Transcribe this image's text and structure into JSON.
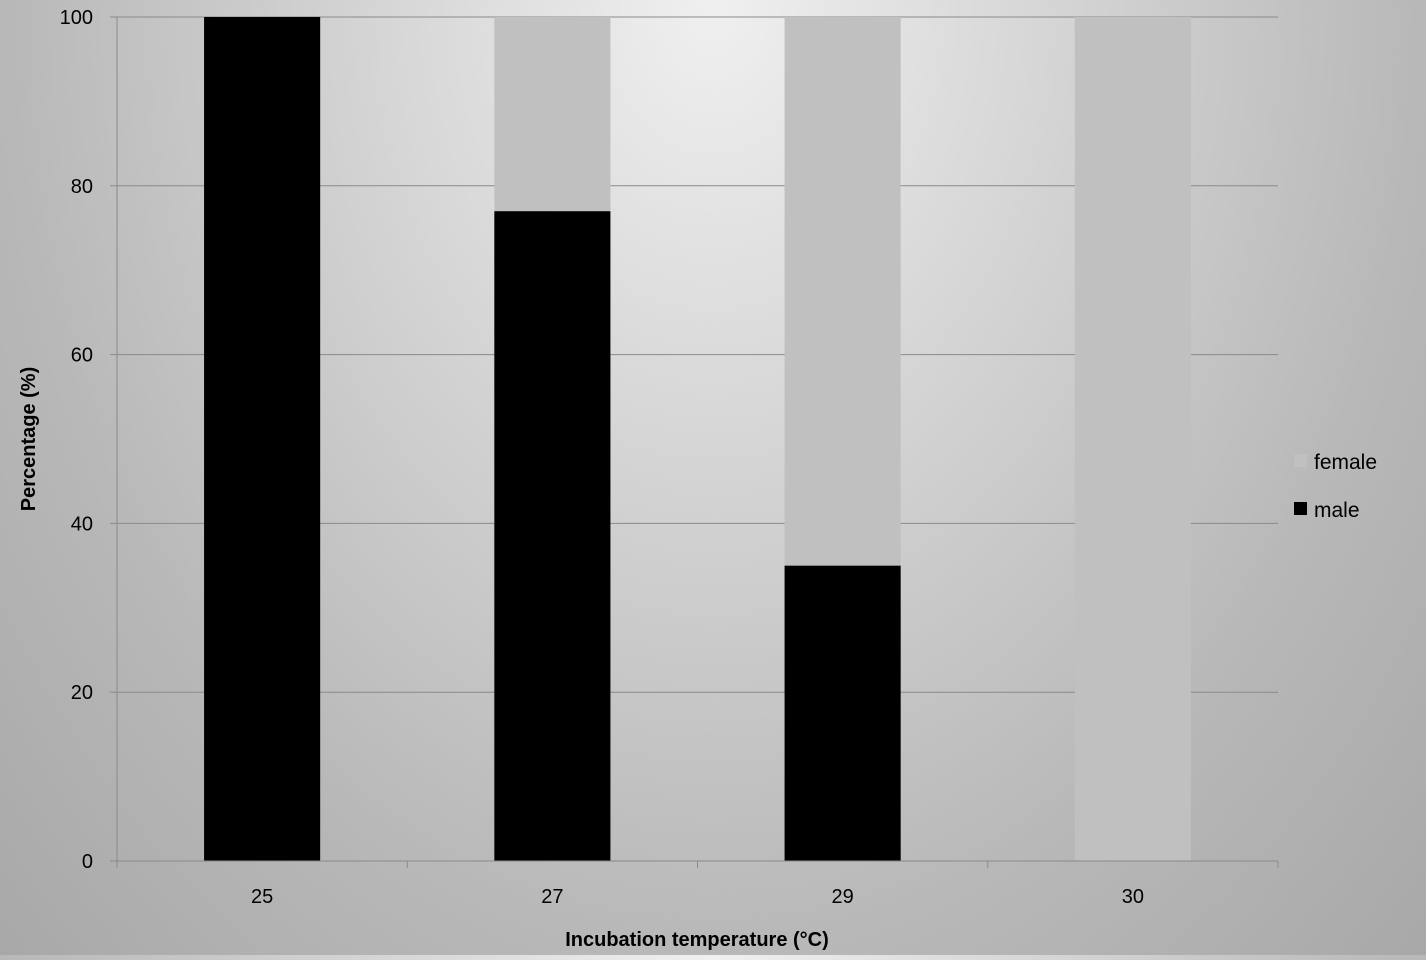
{
  "chart_data": {
    "type": "bar",
    "stacked": true,
    "title": "",
    "xlabel": "Incubation temperature (°C)",
    "ylabel": "Percentage (%)",
    "categories": [
      "25",
      "27",
      "29",
      "30"
    ],
    "series": [
      {
        "name": "male",
        "values": [
          100,
          77,
          35,
          0
        ],
        "color": "#000000"
      },
      {
        "name": "female",
        "values": [
          0,
          23,
          65,
          100
        ],
        "color": "#c0c0c0"
      }
    ],
    "ylim": [
      0,
      100
    ],
    "yticks": [
      0,
      20,
      40,
      60,
      80,
      100
    ],
    "grid": true,
    "legend": {
      "position": "right",
      "entries": [
        {
          "label": "female",
          "color": "#c0c0c0"
        },
        {
          "label": "male",
          "color": "#000000"
        }
      ]
    }
  }
}
